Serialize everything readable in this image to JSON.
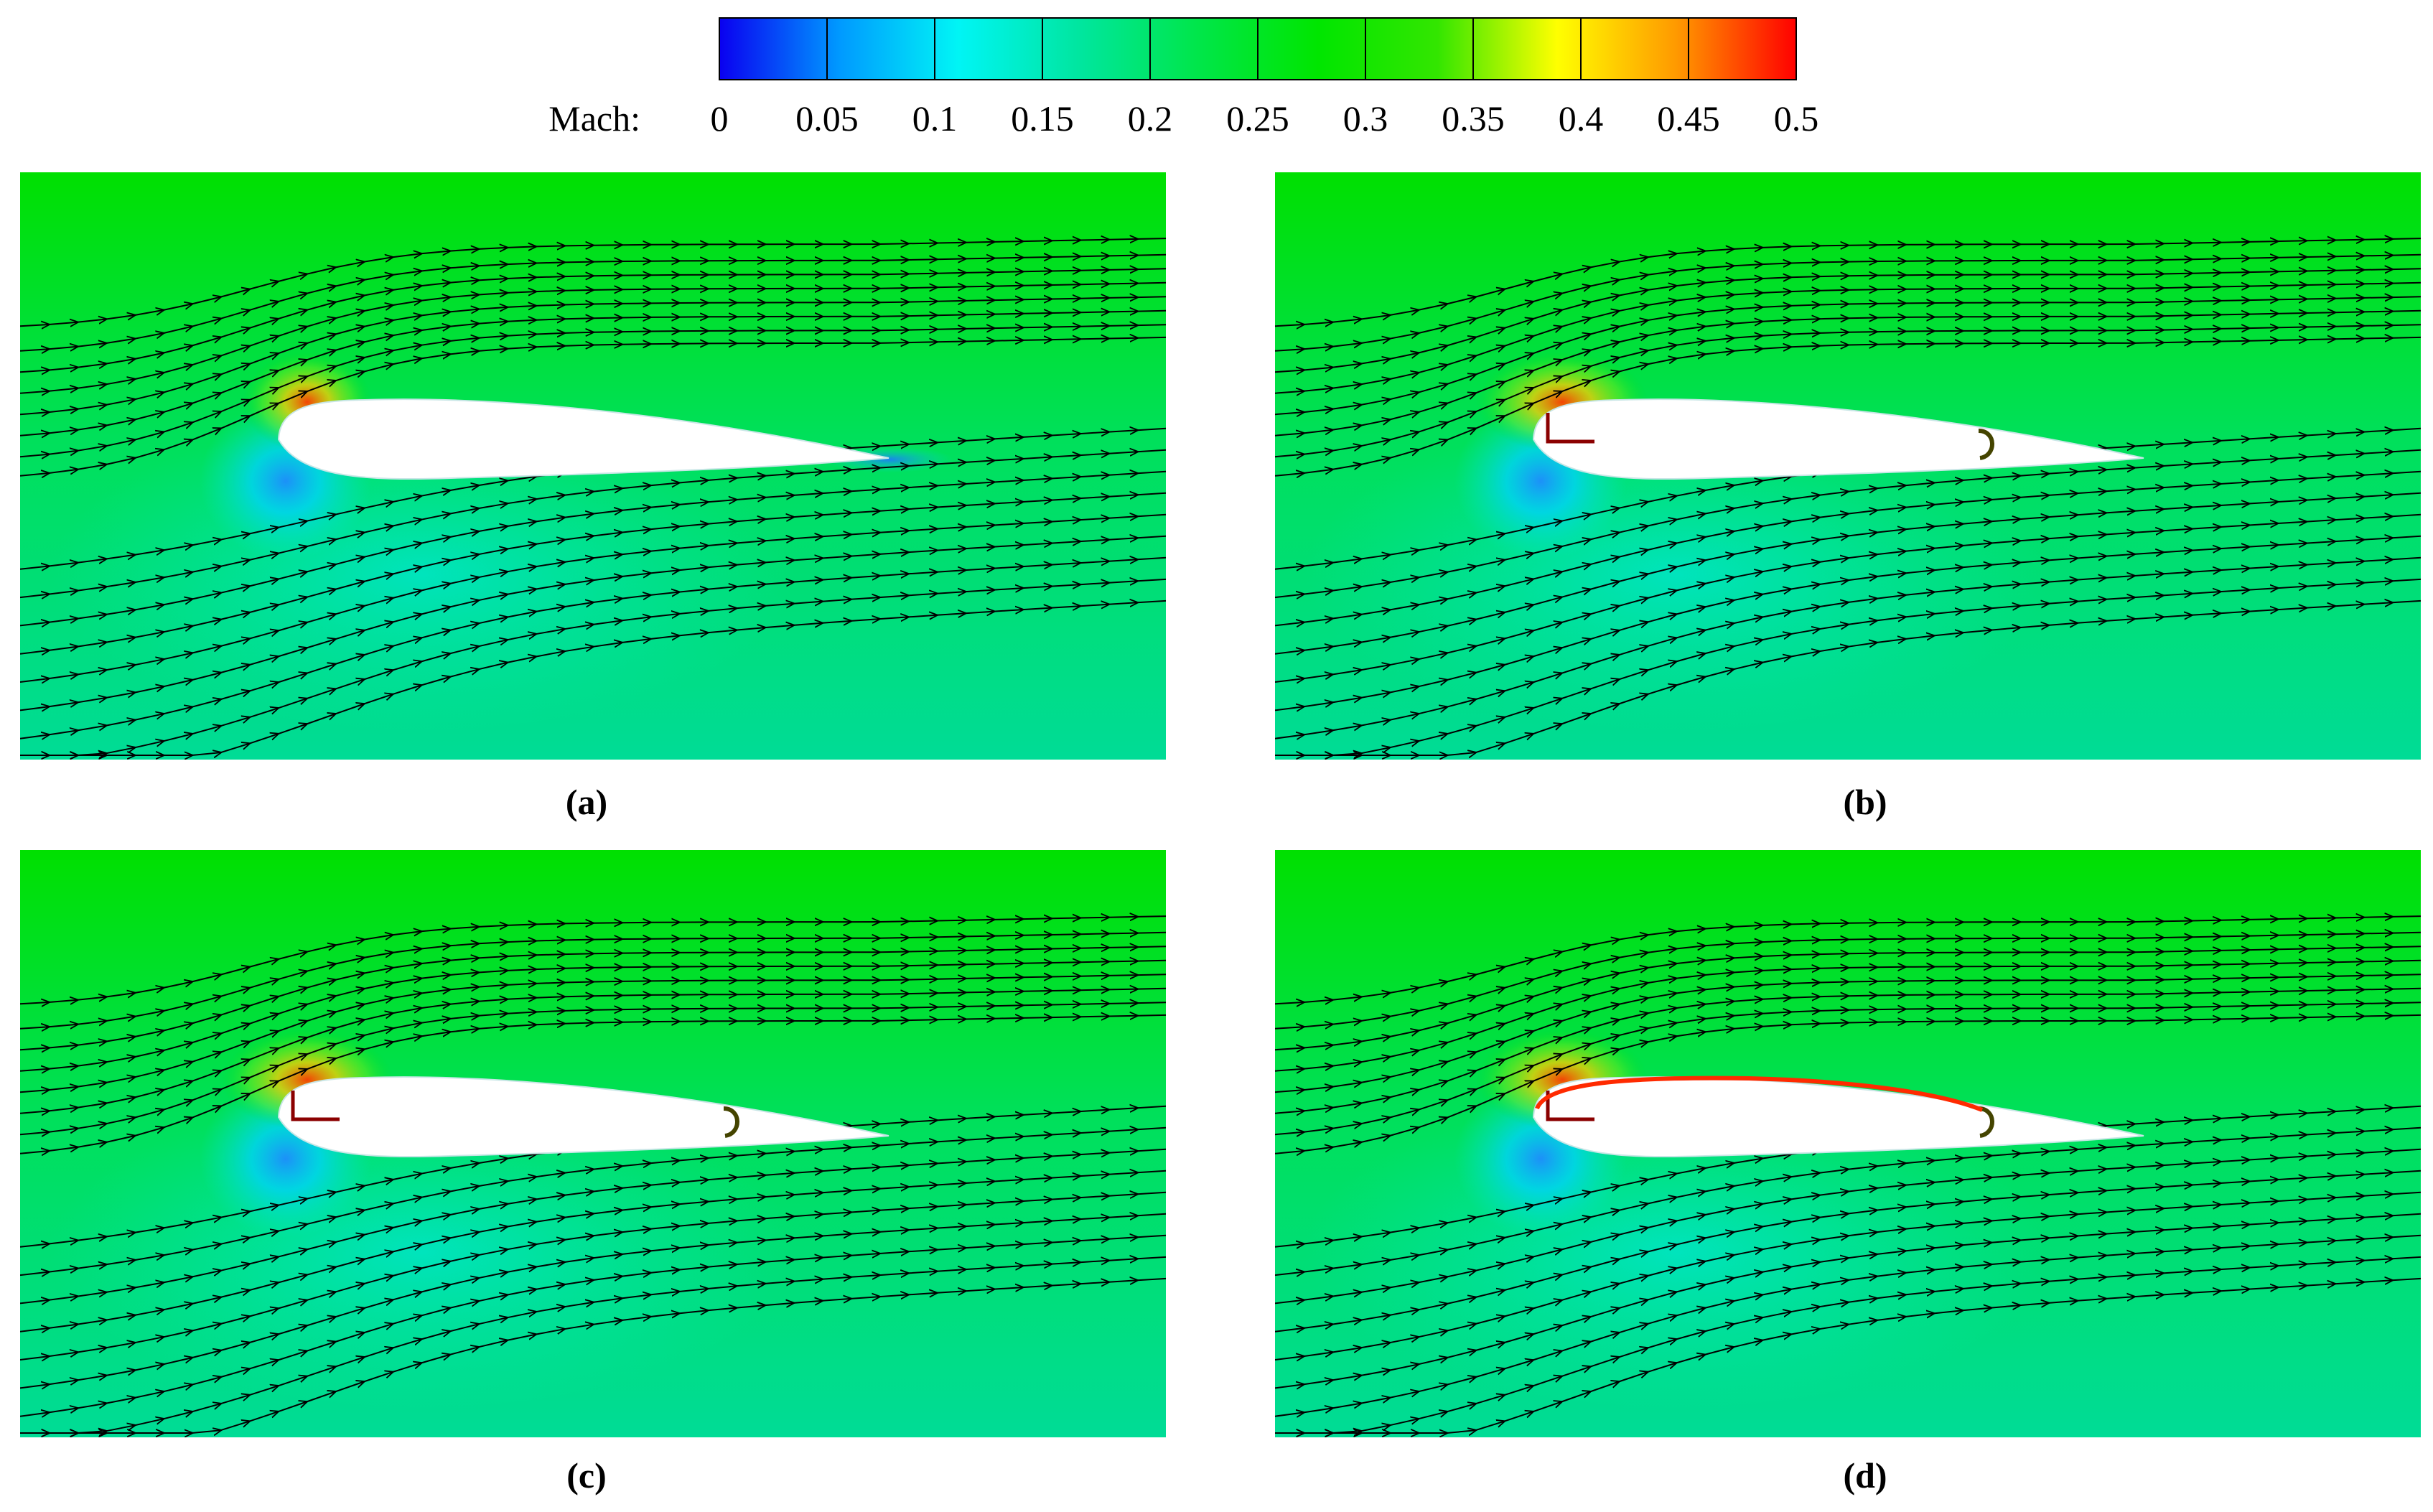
{
  "colorbar": {
    "title": "Mach:",
    "ticks": [
      "0",
      "0.05",
      "0.1",
      "0.15",
      "0.2",
      "0.25",
      "0.3",
      "0.35",
      "0.4",
      "0.45",
      "0.5"
    ],
    "min": 0,
    "max": 0.5,
    "colors": [
      "#0a00f0",
      "#0099ff",
      "#00f5f5",
      "#00e6a0",
      "#00e64a",
      "#00e600",
      "#33e600",
      "#ffff00",
      "#ff9900",
      "#ff0000"
    ]
  },
  "panels": [
    {
      "label": "(a)",
      "variant": "baseline"
    },
    {
      "label": "(b)",
      "variant": "slots"
    },
    {
      "label": "(c)",
      "variant": "slots"
    },
    {
      "label": "(d)",
      "variant": "slots-jet"
    }
  ],
  "colors": {
    "freestream": "#00e000",
    "lower": "#00dca0",
    "stagnation": "#28a0ff",
    "high_speed": "#ff6600",
    "airfoil": "#ffffff",
    "streamline": "#000000"
  }
}
